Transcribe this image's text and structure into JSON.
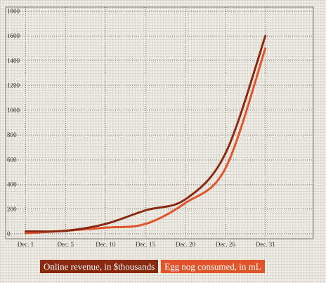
{
  "chart_data": {
    "type": "line",
    "title": "",
    "xlabel": "",
    "ylabel": "",
    "x_ticks": [
      "Dec. 1",
      "Dec. 5",
      "Dec. 10",
      "Dec. 15",
      "Dec. 20",
      "Dec. 26",
      "Dec. 31"
    ],
    "y_ticks": [
      "0",
      "200",
      "400",
      "600",
      "800",
      "1000",
      "1200",
      "1400",
      "1600",
      "1800"
    ],
    "ylim": [
      0,
      1800
    ],
    "xlim": [
      -0.5,
      7.2
    ],
    "grid": true,
    "legend_position": "bottom-left",
    "series": [
      {
        "name": "Online revenue, in $thousands",
        "color": "#8a2a12",
        "x": [
          0,
          1,
          2,
          3,
          4,
          5,
          6
        ],
        "y": [
          20,
          25,
          80,
          190,
          280,
          650,
          1600
        ]
      },
      {
        "name": "Egg nog consumed, in mL",
        "color": "#e0552c",
        "x": [
          0,
          1,
          2,
          3,
          4,
          5,
          6
        ],
        "y": [
          5,
          25,
          50,
          80,
          250,
          530,
          1500
        ]
      }
    ]
  }
}
